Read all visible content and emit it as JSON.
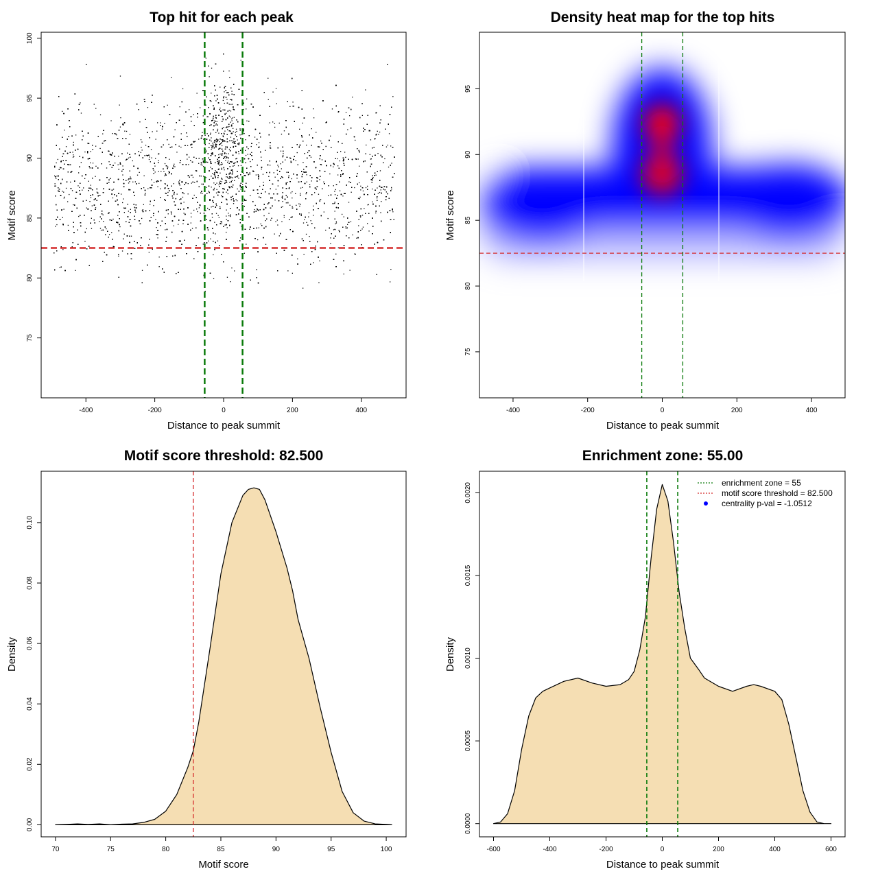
{
  "chart_data": [
    {
      "type": "scatter",
      "title": "Top hit for each peak",
      "xlabel": "Distance to peak summit",
      "ylabel": "Motif score",
      "xlim": [
        -530,
        530
      ],
      "ylim": [
        70,
        100.5
      ],
      "xticks": [
        "-400",
        "-200",
        "0",
        "200",
        "400"
      ],
      "xtick_values": [
        -400,
        -200,
        0,
        200,
        400
      ],
      "yticks": [
        "75",
        "80",
        "85",
        "90",
        "95",
        "100"
      ],
      "ytick_values": [
        75,
        80,
        85,
        90,
        95,
        100
      ],
      "n_points": 9000,
      "reference_lines": {
        "vertical": [
          -55,
          55
        ],
        "horizontal": [
          82.5
        ],
        "vertical_color": "#0a7a0a",
        "horizontal_color": "#d42a2a"
      },
      "point_color": "#000000"
    },
    {
      "type": "heatmap",
      "title": "Density heat map for the top hits",
      "xlabel": "Distance to peak summit",
      "ylabel": "Motif score",
      "xlim": [
        -490,
        490
      ],
      "ylim": [
        71.5,
        99.3
      ],
      "xticks": [
        "-400",
        "-200",
        "0",
        "200",
        "400"
      ],
      "xtick_values": [
        -400,
        -200,
        0,
        200,
        400
      ],
      "yticks": [
        "75",
        "80",
        "85",
        "90",
        "95"
      ],
      "ytick_values": [
        75,
        80,
        85,
        90,
        95
      ],
      "reference_lines": {
        "vertical": [
          -55,
          55
        ],
        "horizontal": [
          82.5
        ],
        "vertical_color": "#0a7a0a",
        "horizontal_color": "#d42a2a"
      },
      "colors": {
        "low": "#ffffff",
        "mid": "#0000ff",
        "high": "#ff0000"
      }
    },
    {
      "type": "area",
      "title": "Motif score threshold: 82.500",
      "xlabel": "Motif score",
      "ylabel": "Density",
      "xlim": [
        68.7,
        101.8
      ],
      "ylim": [
        -0.004,
        0.117
      ],
      "xticks": [
        "70",
        "75",
        "80",
        "85",
        "90",
        "95",
        "100"
      ],
      "xtick_values": [
        70,
        75,
        80,
        85,
        90,
        95,
        100
      ],
      "yticks": [
        "0.00",
        "0.02",
        "0.04",
        "0.06",
        "0.08",
        "0.10"
      ],
      "ytick_values": [
        0,
        0.02,
        0.04,
        0.06,
        0.08,
        0.1
      ],
      "x": [
        70,
        71,
        72,
        73,
        74,
        75,
        76,
        77,
        78,
        79,
        80,
        81,
        82,
        82.5,
        83,
        84,
        85,
        86,
        87,
        87.5,
        88,
        88.5,
        89,
        90,
        91,
        91.5,
        92,
        93,
        94,
        95,
        96,
        97,
        98,
        99,
        100,
        100.5
      ],
      "y": [
        0,
        0.0001,
        0.0003,
        0.0001,
        0.0003,
        0,
        0.0002,
        0.0003,
        0.0008,
        0.0018,
        0.0045,
        0.01,
        0.019,
        0.0245,
        0.034,
        0.058,
        0.083,
        0.1,
        0.109,
        0.111,
        0.1115,
        0.111,
        0.1075,
        0.097,
        0.085,
        0.0775,
        0.068,
        0.055,
        0.039,
        0.024,
        0.011,
        0.004,
        0.0012,
        0.0003,
        0.0001,
        0
      ],
      "fill_color": "#f5deb3",
      "line_color": "#000000",
      "reference_lines": {
        "vertical": [
          82.5
        ],
        "vertical_color": "#d42a2a"
      }
    },
    {
      "type": "area",
      "title": "Enrichment zone: 55.00",
      "xlabel": "Distance to peak summit",
      "ylabel": "Density",
      "xlim": [
        -650,
        650
      ],
      "ylim": [
        -8e-05,
        0.00213
      ],
      "xticks": [
        "-600",
        "-400",
        "-200",
        "0",
        "200",
        "400",
        "600"
      ],
      "xtick_values": [
        -600,
        -400,
        -200,
        0,
        200,
        400,
        600
      ],
      "yticks": [
        "0.0000",
        "0.0005",
        "0.0010",
        "0.0015",
        "0.0020"
      ],
      "ytick_values": [
        0,
        0.0005,
        0.001,
        0.0015,
        0.002
      ],
      "x": [
        -600,
        -575,
        -550,
        -525,
        -500,
        -475,
        -450,
        -425,
        -400,
        -350,
        -300,
        -250,
        -200,
        -150,
        -120,
        -100,
        -80,
        -60,
        -40,
        -20,
        0,
        20,
        40,
        60,
        80,
        100,
        130,
        150,
        200,
        250,
        300,
        325,
        350,
        400,
        425,
        450,
        475,
        500,
        525,
        550,
        575,
        600
      ],
      "y": [
        0,
        1e-05,
        6e-05,
        0.0002,
        0.00045,
        0.00065,
        0.00076,
        0.0008,
        0.00082,
        0.00086,
        0.00088,
        0.00085,
        0.00083,
        0.00084,
        0.00087,
        0.00092,
        0.00105,
        0.00125,
        0.0016,
        0.0019,
        0.00205,
        0.00195,
        0.0017,
        0.0014,
        0.00118,
        0.001,
        0.00093,
        0.00088,
        0.00083,
        0.0008,
        0.00083,
        0.00084,
        0.00083,
        0.0008,
        0.00075,
        0.0006,
        0.0004,
        0.0002,
        7e-05,
        1e-05,
        0,
        0
      ],
      "fill_color": "#f5deb3",
      "line_color": "#000000",
      "reference_lines": {
        "vertical": [
          -55,
          55
        ],
        "vertical_color": "#0a7a0a"
      },
      "legend": {
        "position": "top-right",
        "entries": [
          {
            "label": "enrichment zone = 55",
            "color": "#0a7a0a",
            "style": "dotted-line"
          },
          {
            "label": "motif score threshold = 82.500",
            "color": "#d42a2a",
            "style": "dotted-line"
          },
          {
            "label": "centrality p-val = -1.0512",
            "color": "#0000ff",
            "style": "point"
          }
        ]
      }
    }
  ]
}
